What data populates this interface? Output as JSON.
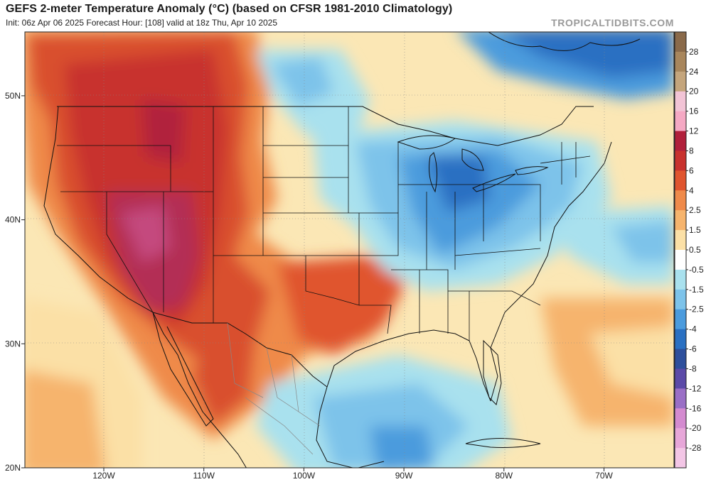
{
  "header": {
    "title": "GEFS 2-meter Temperature Anomaly (°C) (based on CFSR 1981-2010 Climatology)",
    "subtitle": "Init: 06z Apr 06 2025   Forecast Hour: [108]   valid at 18z Thu, Apr 10 2025",
    "credit": "TROPICALTIDBITS.COM"
  },
  "map": {
    "lat_ticks": [
      {
        "label": "50N",
        "value": 50
      },
      {
        "label": "40N",
        "value": 40
      },
      {
        "label": "30N",
        "value": 30
      },
      {
        "label": "20N",
        "value": 20
      }
    ],
    "lon_ticks": [
      {
        "label": "120W",
        "value": -120
      },
      {
        "label": "110W",
        "value": -110
      },
      {
        "label": "100W",
        "value": -100
      },
      {
        "label": "90W",
        "value": -90
      },
      {
        "label": "80W",
        "value": -80
      },
      {
        "label": "70W",
        "value": -70
      }
    ]
  },
  "colorbar": {
    "labels": [
      "28",
      "24",
      "20",
      "16",
      "12",
      "8",
      "6",
      "4",
      "2.5",
      "1.5",
      "0.5",
      "-0.5",
      "-1.5",
      "-2.5",
      "-4",
      "-6",
      "-8",
      "-12",
      "-16",
      "-20",
      "-28"
    ],
    "colors": [
      "#8a6a4a",
      "#a8865c",
      "#c4a57c",
      "#f2c4d6",
      "#f5a9c4",
      "#b1203c",
      "#c8322e",
      "#e0552f",
      "#ef8a4a",
      "#f6b46d",
      "#fbe0a6",
      "#ffffff",
      "#a9e1ee",
      "#7dc3ea",
      "#4b9bdd",
      "#2a70c2",
      "#2d4f9c",
      "#5b4aa8",
      "#9a6fc6",
      "#d48bd0",
      "#e7a7d9",
      "#f3c6e6"
    ]
  }
}
